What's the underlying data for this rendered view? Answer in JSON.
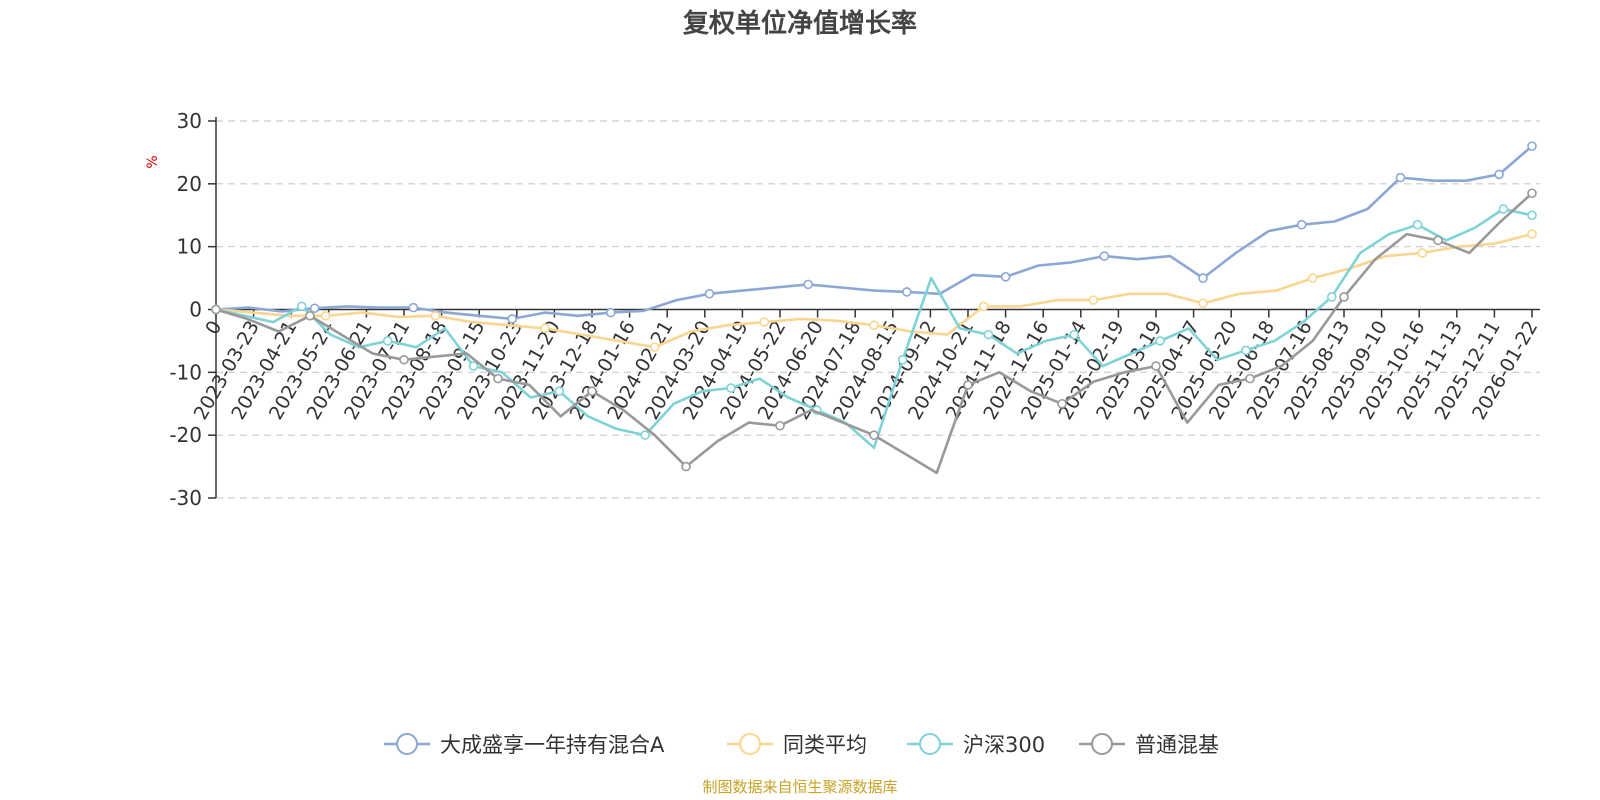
{
  "chart_data": {
    "type": "line",
    "title": "复权单位净值增长率",
    "ylabel": "%",
    "ylim": [
      -30,
      30
    ],
    "yticks": [
      30,
      20,
      10,
      0,
      -10,
      -20,
      -30
    ],
    "grid": true,
    "legend_position": "bottom",
    "source": "制图数据来自恒生聚源数据库",
    "x_first_label": "0",
    "xticks": [
      "2023-03-23",
      "2023-04-21",
      "2023-05-24",
      "2023-06-21",
      "2023-07-21",
      "2023-08-18",
      "2023-09-15",
      "2023-10-23",
      "2023-11-20",
      "2023-12-18",
      "2024-01-16",
      "2024-02-21",
      "2024-03-20",
      "2024-04-19",
      "2024-05-22",
      "2024-06-20",
      "2024-07-18",
      "2024-08-15",
      "2024-09-12",
      "2024-10-21",
      "2024-11-18",
      "2024-12-16",
      "2025-01-14",
      "2025-02-19",
      "2025-03-19",
      "2025-04-17",
      "2025-05-20",
      "2025-06-18",
      "2025-07-16",
      "2025-08-13",
      "2025-09-10",
      "2025-10-16",
      "2025-11-13",
      "2025-12-11",
      "2026-01-22"
    ],
    "series": [
      {
        "name": "大成盛享一年持有混合A",
        "color": "#8ca7d6",
        "values": [
          0,
          0.3,
          -0.3,
          0.2,
          0.5,
          0.3,
          0.3,
          -0.5,
          -1.0,
          -1.5,
          -0.5,
          -1.0,
          -0.5,
          -0.2,
          1.5,
          2.5,
          3.0,
          3.5,
          4.0,
          3.5,
          3.0,
          2.8,
          2.5,
          5.5,
          5.2,
          7.0,
          7.5,
          8.5,
          8.0,
          8.5,
          5.0,
          9.0,
          12.5,
          13.5,
          14.0,
          16.0,
          21.0,
          20.5,
          20.5,
          21.5,
          26.0
        ]
      },
      {
        "name": "同类平均",
        "color": "#f9d68f",
        "values": [
          0,
          -0.5,
          -1.0,
          -1.0,
          -0.5,
          -1.2,
          -1.0,
          -2.0,
          -2.5,
          -3.0,
          -4.0,
          -5.0,
          -6.0,
          -3.5,
          -2.5,
          -2.0,
          -1.5,
          -1.8,
          -2.5,
          -3.5,
          -4.0,
          0.5,
          0.5,
          1.5,
          1.5,
          2.5,
          2.5,
          1.0,
          2.5,
          3.0,
          5.0,
          6.5,
          8.5,
          9.0,
          10.0,
          10.5,
          12.0
        ]
      },
      {
        "name": "沪深300",
        "color": "#7fd2d6",
        "values": [
          0,
          -1.0,
          -2.0,
          0.5,
          -4.0,
          -6.0,
          -5.0,
          -6.0,
          -3.0,
          -9.0,
          -10.0,
          -14.0,
          -13.0,
          -17.0,
          -19.0,
          -20.0,
          -15.0,
          -13.0,
          -12.5,
          -11.0,
          -14.0,
          -16.0,
          -18.0,
          -22.0,
          -8.0,
          5.0,
          -3.0,
          -4.0,
          -7.0,
          -5.0,
          -4.0,
          -9.0,
          -7.0,
          -5.0,
          -3.0,
          -8.0,
          -6.5,
          -5.0,
          -2.0,
          2.0,
          9.0,
          12.0,
          13.5,
          11.0,
          13.0,
          16.0,
          15.0
        ]
      },
      {
        "name": "普通混基",
        "color": "#999999",
        "values": [
          0,
          -1.5,
          -3.5,
          -1.0,
          -4.0,
          -7.0,
          -8.0,
          -7.5,
          -7.0,
          -11.0,
          -12.0,
          -17.0,
          -13.0,
          -16.0,
          -20.0,
          -25.0,
          -21.0,
          -18.0,
          -18.5,
          -16.0,
          -18.0,
          -20.0,
          -23.0,
          -26.0,
          -12.0,
          -10.0,
          -13.0,
          -15.0,
          -11.5,
          -10.0,
          -9.0,
          -18.0,
          -12.0,
          -11.0,
          -9.0,
          -5.0,
          2.0,
          8.0,
          12.0,
          11.0,
          9.0,
          14.0,
          18.5
        ]
      }
    ]
  }
}
